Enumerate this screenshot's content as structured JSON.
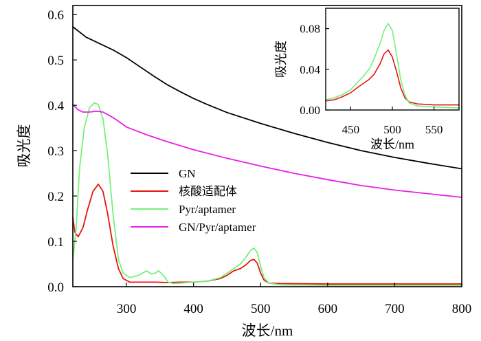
{
  "chart_data": [
    {
      "id": "main",
      "type": "line",
      "title": "",
      "xlabel": "波长/nm",
      "ylabel": "吸光度",
      "xlim": [
        220,
        800
      ],
      "ylim": [
        0,
        0.62
      ],
      "xticks": [
        300,
        400,
        500,
        600,
        700,
        800
      ],
      "yticks": [
        0.0,
        0.1,
        0.2,
        0.3,
        0.4,
        0.5,
        0.6
      ],
      "tick_labels_x": [
        "300",
        "400",
        "500",
        "600",
        "700",
        "800"
      ],
      "tick_labels_y": [
        "0.0",
        "0.1",
        "0.2",
        "0.3",
        "0.4",
        "0.5",
        "0.6"
      ],
      "grid": false,
      "legend_position": "center",
      "series": [
        {
          "name": "GN",
          "color": "#000000",
          "points": [
            [
              220,
              0.573
            ],
            [
              240,
              0.55
            ],
            [
              260,
              0.536
            ],
            [
              280,
              0.522
            ],
            [
              300,
              0.505
            ],
            [
              320,
              0.485
            ],
            [
              340,
              0.465
            ],
            [
              360,
              0.446
            ],
            [
              380,
              0.43
            ],
            [
              400,
              0.415
            ],
            [
              420,
              0.402
            ],
            [
              450,
              0.384
            ],
            [
              500,
              0.36
            ],
            [
              550,
              0.338
            ],
            [
              600,
              0.318
            ],
            [
              650,
              0.3
            ],
            [
              700,
              0.285
            ],
            [
              750,
              0.272
            ],
            [
              800,
              0.26
            ]
          ]
        },
        {
          "name": "核酸适配体",
          "color": "#e8140c",
          "points": [
            [
              220,
              0.153
            ],
            [
              223,
              0.12
            ],
            [
              228,
              0.11
            ],
            [
              235,
              0.13
            ],
            [
              242,
              0.17
            ],
            [
              250,
              0.21
            ],
            [
              258,
              0.226
            ],
            [
              265,
              0.21
            ],
            [
              272,
              0.16
            ],
            [
              280,
              0.09
            ],
            [
              288,
              0.04
            ],
            [
              295,
              0.018
            ],
            [
              305,
              0.01
            ],
            [
              320,
              0.01
            ],
            [
              335,
              0.01
            ],
            [
              345,
              0.01
            ],
            [
              360,
              0.009
            ],
            [
              380,
              0.01
            ],
            [
              400,
              0.01
            ],
            [
              420,
              0.012
            ],
            [
              440,
              0.018
            ],
            [
              450,
              0.025
            ],
            [
              460,
              0.035
            ],
            [
              470,
              0.04
            ],
            [
              478,
              0.048
            ],
            [
              485,
              0.058
            ],
            [
              490,
              0.06
            ],
            [
              495,
              0.052
            ],
            [
              500,
              0.03
            ],
            [
              505,
              0.015
            ],
            [
              512,
              0.008
            ],
            [
              530,
              0.007
            ],
            [
              600,
              0.006
            ],
            [
              700,
              0.006
            ],
            [
              800,
              0.006
            ]
          ]
        },
        {
          "name": "Pyr/aptamer",
          "color": "#76f07a",
          "points": [
            [
              220,
              0.057
            ],
            [
              225,
              0.13
            ],
            [
              230,
              0.26
            ],
            [
              237,
              0.35
            ],
            [
              245,
              0.395
            ],
            [
              252,
              0.405
            ],
            [
              258,
              0.402
            ],
            [
              265,
              0.37
            ],
            [
              272,
              0.29
            ],
            [
              280,
              0.16
            ],
            [
              288,
              0.06
            ],
            [
              295,
              0.03
            ],
            [
              305,
              0.02
            ],
            [
              318,
              0.025
            ],
            [
              330,
              0.035
            ],
            [
              337,
              0.028
            ],
            [
              343,
              0.03
            ],
            [
              348,
              0.035
            ],
            [
              355,
              0.025
            ],
            [
              362,
              0.01
            ],
            [
              370,
              0.007
            ],
            [
              380,
              0.008
            ],
            [
              400,
              0.01
            ],
            [
              420,
              0.012
            ],
            [
              440,
              0.02
            ],
            [
              450,
              0.03
            ],
            [
              460,
              0.04
            ],
            [
              470,
              0.05
            ],
            [
              478,
              0.065
            ],
            [
              485,
              0.08
            ],
            [
              490,
              0.085
            ],
            [
              495,
              0.075
            ],
            [
              500,
              0.045
            ],
            [
              505,
              0.02
            ],
            [
              512,
              0.008
            ],
            [
              530,
              0.004
            ],
            [
              600,
              0.003
            ],
            [
              700,
              0.003
            ],
            [
              800,
              0.003
            ]
          ]
        },
        {
          "name": "GN/Pyr/aptamer",
          "color": "#e81ee8",
          "points": [
            [
              220,
              0.402
            ],
            [
              228,
              0.39
            ],
            [
              235,
              0.385
            ],
            [
              245,
              0.385
            ],
            [
              255,
              0.387
            ],
            [
              265,
              0.385
            ],
            [
              275,
              0.377
            ],
            [
              285,
              0.368
            ],
            [
              300,
              0.352
            ],
            [
              330,
              0.335
            ],
            [
              360,
              0.32
            ],
            [
              400,
              0.302
            ],
            [
              450,
              0.283
            ],
            [
              500,
              0.266
            ],
            [
              550,
              0.25
            ],
            [
              600,
              0.236
            ],
            [
              650,
              0.223
            ],
            [
              700,
              0.213
            ],
            [
              750,
              0.205
            ],
            [
              800,
              0.197
            ]
          ]
        }
      ]
    },
    {
      "id": "inset",
      "type": "line",
      "title": "",
      "xlabel": "波长/nm",
      "ylabel": "吸光度",
      "xlim": [
        420,
        580
      ],
      "ylim": [
        0,
        0.1
      ],
      "xticks": [
        450,
        500,
        550
      ],
      "yticks": [
        0.0,
        0.04,
        0.08
      ],
      "tick_labels_x": [
        "450",
        "500",
        "550"
      ],
      "tick_labels_y": [
        "0.00",
        "0.04",
        "0.08"
      ],
      "grid": false,
      "series": [
        {
          "name": "核酸适配体",
          "color": "#e8140c",
          "points": [
            [
              420,
              0.009
            ],
            [
              430,
              0.01
            ],
            [
              440,
              0.013
            ],
            [
              450,
              0.017
            ],
            [
              458,
              0.022
            ],
            [
              465,
              0.026
            ],
            [
              472,
              0.03
            ],
            [
              478,
              0.035
            ],
            [
              485,
              0.045
            ],
            [
              490,
              0.055
            ],
            [
              495,
              0.059
            ],
            [
              500,
              0.052
            ],
            [
              505,
              0.038
            ],
            [
              510,
              0.022
            ],
            [
              515,
              0.012
            ],
            [
              520,
              0.008
            ],
            [
              530,
              0.006
            ],
            [
              550,
              0.005
            ],
            [
              580,
              0.005
            ]
          ]
        },
        {
          "name": "Pyr/aptamer",
          "color": "#76f07a",
          "points": [
            [
              420,
              0.01
            ],
            [
              430,
              0.012
            ],
            [
              440,
              0.015
            ],
            [
              450,
              0.02
            ],
            [
              458,
              0.027
            ],
            [
              465,
              0.033
            ],
            [
              472,
              0.04
            ],
            [
              478,
              0.05
            ],
            [
              485,
              0.065
            ],
            [
              490,
              0.078
            ],
            [
              495,
              0.085
            ],
            [
              500,
              0.078
            ],
            [
              505,
              0.055
            ],
            [
              510,
              0.03
            ],
            [
              515,
              0.015
            ],
            [
              520,
              0.007
            ],
            [
              530,
              0.004
            ],
            [
              550,
              0.003
            ],
            [
              580,
              0.002
            ]
          ]
        }
      ]
    }
  ]
}
